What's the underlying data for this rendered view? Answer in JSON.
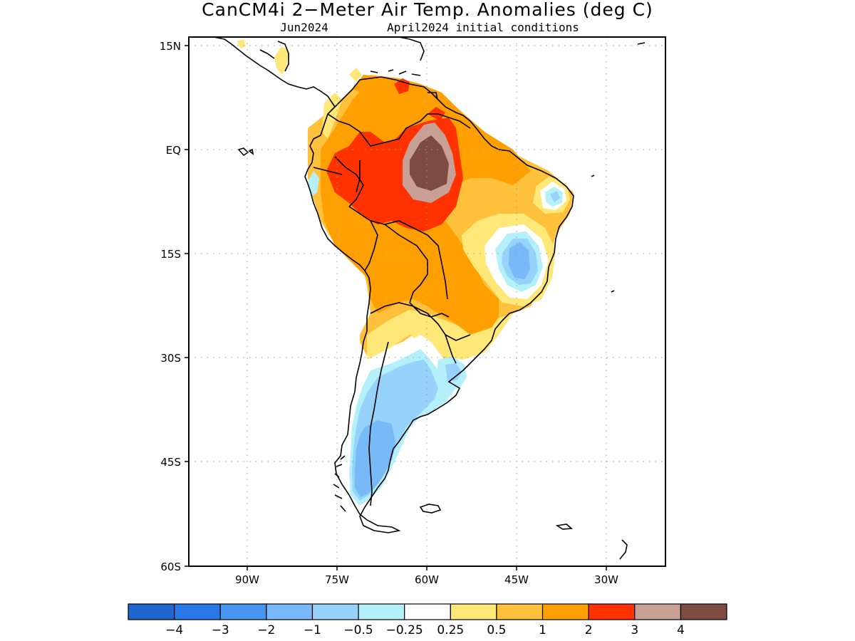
{
  "title": "CanCM4i 2−Meter Air Temp. Anomalies (deg C)",
  "subtitle_left": "Jun2024",
  "subtitle_right": "April2024 initial conditions",
  "lat_labels": [
    "15N",
    "EQ",
    "15S",
    "30S",
    "45S",
    "60S"
  ],
  "lon_labels": [
    "90W",
    "75W",
    "60W",
    "45W",
    "30W"
  ],
  "colorbar": {
    "colors": [
      "#1f66cf",
      "#2878e8",
      "#4696f2",
      "#78b9f7",
      "#96d2fa",
      "#b4f0fa",
      "#ffffff",
      "#ffe878",
      "#ffc03c",
      "#ffa000",
      "#ff3200",
      "#c8a096",
      "#7d4b41"
    ],
    "labels": [
      "−4",
      "−3",
      "−2",
      "−1",
      "−0.5",
      "−0.25",
      "0.25",
      "0.5",
      "1",
      "2",
      "3",
      "4"
    ]
  }
}
